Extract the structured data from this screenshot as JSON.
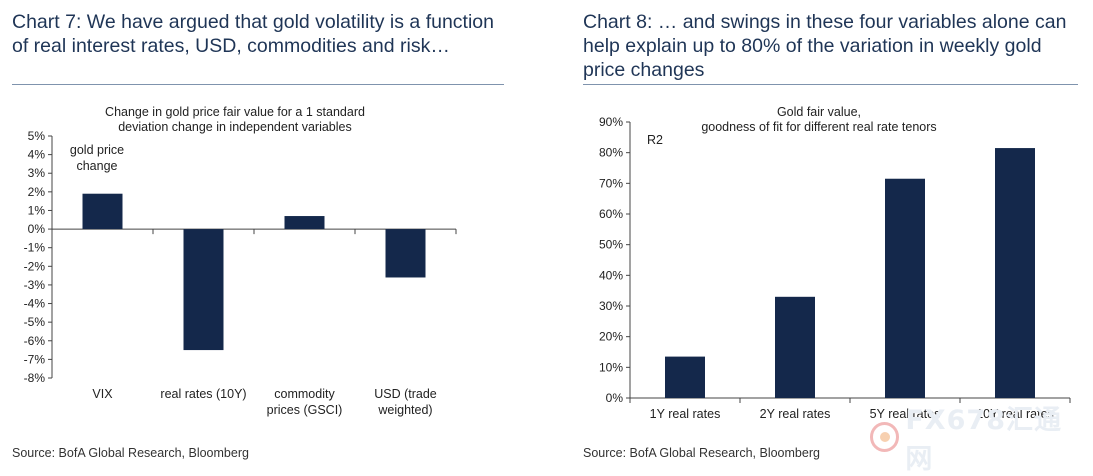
{
  "chart_data": [
    {
      "type": "bar",
      "heading": "Chart 7: We have argued that gold volatility is a function of real interest rates, USD, commodities and risk…",
      "title": "Change in gold price fair value for a 1 standard deviation change in independent variables",
      "title_lines": [
        "Change in gold price fair value for a 1 standard",
        "deviation change in independent variables"
      ],
      "ylabel_lines": [
        "gold price",
        "change"
      ],
      "categories": [
        "VIX",
        "real rates (10Y)",
        "commodity prices (GSCI)",
        "USD (trade weighted)"
      ],
      "category_lines": [
        [
          "VIX"
        ],
        [
          "real rates (10Y)"
        ],
        [
          "commodity",
          "prices (GSCI)"
        ],
        [
          "USD (trade",
          "weighted)"
        ]
      ],
      "values": [
        1.9,
        -6.5,
        0.7,
        -2.6
      ],
      "ylim": [
        -8,
        5
      ],
      "yticks": [
        5,
        4,
        3,
        2,
        1,
        0,
        -1,
        -2,
        -3,
        -4,
        -5,
        -6,
        -7,
        -8
      ],
      "ytick_labels": [
        "5%",
        "4%",
        "3%",
        "2%",
        "1%",
        "0%",
        "-1%",
        "-2%",
        "-3%",
        "-4%",
        "-5%",
        "-6%",
        "-7%",
        "-8%"
      ],
      "bar_color": "#14284b",
      "source": "Source: BofA Global Research, Bloomberg"
    },
    {
      "type": "bar",
      "heading": "Chart 8: … and swings in these four variables alone can help explain up to 80% of the variation in weekly gold price changes",
      "title": "Gold fair value, goodness of fit for different real rate tenors",
      "title_lines": [
        "Gold fair value,",
        "goodness of fit for different real rate tenors"
      ],
      "ylabel_lines": [
        "R2"
      ],
      "categories": [
        "1Y real rates",
        "2Y real rates",
        "5Y real rates",
        "10Y real rates"
      ],
      "category_lines": [
        [
          "1Y real rates"
        ],
        [
          "2Y real rates"
        ],
        [
          "5Y real rates"
        ],
        [
          "10Y real rates"
        ]
      ],
      "values": [
        13.5,
        33,
        71.5,
        81.5
      ],
      "ylim": [
        0,
        90
      ],
      "yticks": [
        90,
        80,
        70,
        60,
        50,
        40,
        30,
        20,
        10,
        0
      ],
      "ytick_labels": [
        "90%",
        "80%",
        "70%",
        "60%",
        "50%",
        "40%",
        "30%",
        "20%",
        "10%",
        "0%"
      ],
      "bar_color": "#14284b",
      "source": "Source: BofA Global Research, Bloomberg"
    }
  ],
  "watermark": {
    "text": "FX678汇通网"
  }
}
